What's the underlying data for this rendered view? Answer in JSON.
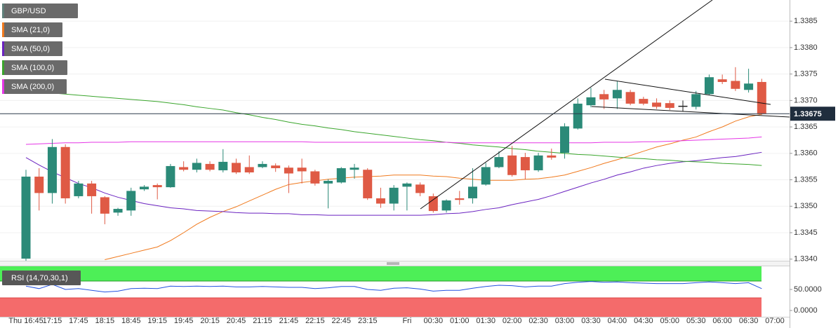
{
  "chart_data": {
    "type": "candlestick",
    "symbol": "GBP/USD",
    "categories": [
      "Thu 16:45",
      null,
      "17:15",
      null,
      "17:45",
      null,
      "18:15",
      null,
      "18:45",
      null,
      "19:15",
      null,
      "19:45",
      null,
      "20:15",
      null,
      "20:45",
      null,
      "21:15",
      null,
      "21:45",
      null,
      "22:15",
      null,
      "22:45",
      null,
      "23:15",
      null,
      null,
      "Fri",
      null,
      "00:30",
      null,
      "01:00",
      null,
      "01:30",
      null,
      "02:00",
      null,
      "02:30",
      null,
      "03:00",
      null,
      "03:30",
      null,
      "04:00",
      null,
      "04:30",
      null,
      "05:00",
      null,
      "05:30",
      null,
      "06:00",
      null,
      "06:30",
      null,
      "07:00"
    ],
    "open": [
      1.33401,
      1.33556,
      1.33525,
      1.33612,
      1.33519,
      1.33543,
      1.33517,
      1.33488,
      1.33492,
      1.33532,
      1.3354,
      1.33536,
      1.33574,
      1.33569,
      1.3358,
      1.33568,
      1.33582,
      1.33574,
      1.33574,
      1.33577,
      1.33573,
      1.33573,
      1.33566,
      1.33543,
      1.33545,
      1.33569,
      1.33569,
      1.33515,
      1.33505,
      1.33537,
      1.33541,
      1.33519,
      1.33492,
      1.33515,
      1.33515,
      1.33541,
      1.33574,
      1.33596,
      1.33593,
      1.33568,
      1.33596,
      1.33601,
      1.33647,
      1.33691,
      1.33712,
      1.33704,
      1.33716,
      1.33703,
      1.33696,
      1.33695,
      1.3369,
      1.33688,
      1.33712,
      1.3374,
      1.33737,
      1.3372,
      1.33735,
      null
    ],
    "high": [
      1.33569,
      1.33572,
      1.33627,
      1.33617,
      1.33548,
      1.33548,
      1.33519,
      1.33497,
      1.33535,
      1.3354,
      1.33543,
      1.3358,
      1.33585,
      1.3359,
      1.33585,
      1.33608,
      1.3359,
      1.33596,
      1.33585,
      1.33581,
      1.33577,
      1.3359,
      1.33569,
      1.33551,
      1.33574,
      1.3358,
      1.33572,
      1.33535,
      1.3354,
      1.33545,
      1.33545,
      1.33524,
      1.33513,
      1.33529,
      1.33572,
      1.33582,
      1.33604,
      1.33614,
      1.33601,
      1.33601,
      1.33609,
      1.33657,
      1.33704,
      1.33724,
      1.3372,
      1.33736,
      1.3372,
      1.33707,
      1.33704,
      1.337,
      1.337,
      1.33718,
      1.33749,
      1.33749,
      1.33763,
      1.3376,
      1.33741,
      null
    ],
    "low": [
      1.3339,
      1.33492,
      1.33505,
      1.33505,
      1.33515,
      1.33486,
      1.33466,
      1.33482,
      1.33482,
      1.33529,
      1.33513,
      1.33535,
      1.33566,
      1.33564,
      1.33566,
      1.33564,
      1.33561,
      1.33561,
      1.33572,
      1.33565,
      1.33525,
      1.33543,
      1.33539,
      1.33496,
      1.33543,
      1.33552,
      1.33512,
      1.33497,
      1.33492,
      1.33492,
      1.33519,
      1.33488,
      1.33488,
      1.33503,
      1.33505,
      1.33539,
      1.33572,
      1.33556,
      1.33551,
      1.33565,
      1.33588,
      1.3359,
      1.33645,
      1.33687,
      1.33684,
      1.33684,
      1.33691,
      1.33691,
      1.33684,
      1.33682,
      1.3368,
      1.33683,
      1.3371,
      1.33731,
      1.33718,
      1.33715,
      1.33673,
      null
    ],
    "close": [
      1.33556,
      1.33525,
      1.33612,
      1.33515,
      1.33543,
      1.33519,
      1.33486,
      1.33495,
      1.33529,
      1.33537,
      1.33536,
      1.33576,
      1.33569,
      1.33582,
      1.33569,
      1.33584,
      1.33564,
      1.33564,
      1.3358,
      1.33572,
      1.33562,
      1.33566,
      1.33543,
      1.33548,
      1.33572,
      1.33573,
      1.33515,
      1.33505,
      1.33535,
      1.33543,
      1.33525,
      1.33491,
      1.33511,
      1.33512,
      1.33537,
      1.33574,
      1.33593,
      1.33559,
      1.33568,
      1.33596,
      1.33592,
      1.33651,
      1.33694,
      1.33706,
      1.33702,
      1.3372,
      1.33694,
      1.33694,
      1.33688,
      1.33686,
      1.3369,
      1.33712,
      1.33744,
      1.33735,
      1.33722,
      1.33732,
      1.33675,
      null
    ],
    "up_color": "#2b8a78",
    "down_color": "#df5a45",
    "doji_color": "#222222",
    "series": [
      {
        "name": "SMA (21,0)",
        "color": "#f07a1e",
        "values": [
          null,
          null,
          null,
          null,
          null,
          null,
          1.33399,
          1.33405,
          1.33411,
          1.33417,
          1.33423,
          1.33435,
          1.3345,
          1.33466,
          1.33479,
          1.3349,
          1.33499,
          1.3351,
          1.33521,
          1.33532,
          1.33541,
          1.33545,
          1.33548,
          1.33551,
          1.33553,
          1.33555,
          1.33556,
          1.33557,
          1.33559,
          1.33559,
          1.33559,
          1.33557,
          1.33556,
          1.33553,
          1.33551,
          1.33549,
          1.33549,
          1.33549,
          1.33551,
          1.33552,
          1.33555,
          1.33559,
          1.33566,
          1.33573,
          1.33581,
          1.33588,
          1.33596,
          1.33604,
          1.33612,
          1.33618,
          1.33625,
          1.33631,
          1.33641,
          1.3365,
          1.33661,
          1.33669,
          1.33674,
          null
        ]
      },
      {
        "name": "SMA (50,0)",
        "color": "#6a22c0",
        "values": [
          1.33592,
          1.33578,
          1.33565,
          1.33554,
          1.33543,
          1.33535,
          1.33525,
          1.33517,
          1.33511,
          1.33505,
          1.33501,
          1.33497,
          1.33495,
          1.33492,
          1.33491,
          1.3349,
          1.33488,
          1.33487,
          1.33487,
          1.33486,
          1.33486,
          1.33484,
          1.33484,
          1.33483,
          1.33483,
          1.33483,
          1.33483,
          1.33483,
          1.33483,
          1.33483,
          1.33483,
          1.33484,
          1.33486,
          1.33487,
          1.3349,
          1.33494,
          1.33497,
          1.33503,
          1.33508,
          1.33513,
          1.3352,
          1.33528,
          1.33536,
          1.33544,
          1.33551,
          1.33559,
          1.33565,
          1.33572,
          1.33577,
          1.33581,
          1.33584,
          1.33586,
          1.33589,
          1.33592,
          1.33594,
          1.33598,
          1.33602,
          null
        ]
      },
      {
        "name": "SMA (100,0)",
        "color": "#3aa52c",
        "values": [
          1.33718,
          1.33716,
          1.33714,
          1.33712,
          1.3371,
          1.33708,
          1.33706,
          1.33704,
          1.33702,
          1.337,
          1.33698,
          1.33695,
          1.33692,
          1.33688,
          1.33685,
          1.33682,
          1.33677,
          1.33673,
          1.33668,
          1.33664,
          1.33659,
          1.33655,
          1.33652,
          1.33648,
          1.33645,
          1.33641,
          1.33638,
          1.33635,
          1.33632,
          1.33629,
          1.33626,
          1.33624,
          1.33621,
          1.33619,
          1.33616,
          1.33614,
          1.33612,
          1.33609,
          1.33607,
          1.33604,
          1.33602,
          1.336,
          1.33598,
          1.33597,
          1.33595,
          1.33593,
          1.33591,
          1.3359,
          1.33588,
          1.33587,
          1.33585,
          1.33584,
          1.33583,
          1.33581,
          1.3358,
          1.33579,
          1.33577,
          null
        ]
      },
      {
        "name": "SMA (200,0)",
        "color": "#e536e6",
        "values": [
          1.33617,
          1.33618,
          1.33619,
          1.3362,
          1.3362,
          1.33621,
          1.33621,
          1.33621,
          1.33622,
          1.33622,
          1.33622,
          1.33622,
          1.33622,
          1.33622,
          1.33622,
          1.33622,
          1.33622,
          1.33622,
          1.33622,
          1.33622,
          1.33622,
          1.33622,
          1.33621,
          1.33621,
          1.33621,
          1.33621,
          1.33621,
          1.33621,
          1.33621,
          1.33621,
          1.33621,
          1.33621,
          1.33621,
          1.3362,
          1.3362,
          1.3362,
          1.3362,
          1.3362,
          1.3362,
          1.3362,
          1.3362,
          1.3362,
          1.3362,
          1.3362,
          1.33621,
          1.33621,
          1.33621,
          1.33622,
          1.33622,
          1.33623,
          1.33624,
          1.33625,
          1.33626,
          1.33627,
          1.33628,
          1.33629,
          1.33631,
          null
        ]
      }
    ],
    "ylim": [
      1.33397,
      1.3389
    ],
    "yticks": [
      {
        "value": 1.334,
        "label": "1.3340"
      },
      1.3345,
      {
        "value": 1.335,
        "label": "1.3350"
      },
      1.3355,
      {
        "value": 1.336,
        "label": "1.3360"
      },
      1.3365,
      {
        "value": 1.337,
        "label": "1.3370"
      },
      1.3375,
      {
        "value": 1.338,
        "label": "1.3380"
      },
      1.3385
    ],
    "grid": true,
    "last_price": 1.33675,
    "rsi": {
      "name": "RSI (14,70,30,1)",
      "color": "#2352e0",
      "values": [
        58,
        52,
        62,
        50,
        52,
        48,
        44,
        46,
        52,
        53,
        52,
        58,
        57,
        58,
        57,
        58,
        56,
        56,
        57,
        56,
        55,
        55,
        52,
        54,
        57,
        57,
        50,
        48,
        53,
        54,
        51,
        46,
        48,
        48,
        53,
        57,
        60,
        59,
        56,
        58,
        58,
        64,
        67,
        69,
        67,
        68,
        66,
        65,
        64,
        64,
        64,
        66,
        68,
        66,
        64,
        66,
        52,
        null
      ],
      "ylim": [
        -15,
        105
      ],
      "yticks": [
        {
          "value": 0,
          "label": "0.0000"
        },
        {
          "value": 50,
          "label": "50.0000"
        }
      ],
      "overbought": 70,
      "oversold": 30,
      "overbought_color": "#4def57",
      "oversold_color": "#f46b6b"
    }
  }
}
